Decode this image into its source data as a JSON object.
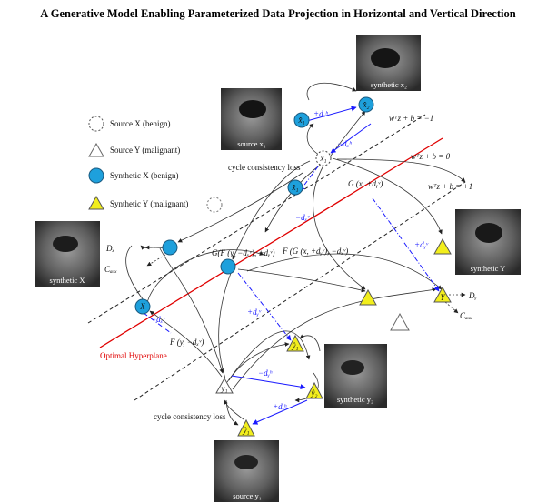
{
  "title": "A Generative Model Enabling Parameterized Data Projection in Horizontal and Vertical Direction",
  "legend": [
    {
      "label": "Source X (benign)"
    },
    {
      "label": "Source Y (malignant)"
    },
    {
      "label": "Synthetic X (benign)"
    },
    {
      "label": "Synthetic Y (malignant)"
    }
  ],
  "thumbnails": {
    "synthetic_x2": "synthetic x₂",
    "source_x1": "source x₁",
    "synthetic_x": "synthetic X",
    "synthetic_y": "synthetic Y",
    "synthetic_y2": "synthetic y₂",
    "source_y1": "source y₁"
  },
  "hyperplanes": {
    "lower": "wᵀz + b = −1",
    "middle": "wᵀz + b =  0",
    "upper": "wᵀz + b =  +1",
    "optimal": "Optimal Hyperplane"
  },
  "labels": {
    "cycle_top": "cycle consistency loss",
    "cycle_bottom": "cycle consistency loss",
    "g_x": "G (x, +dᵧᵛ)",
    "g_nested": "G(F (y, −dₓᵛ), +dᵧᵛ)",
    "f_nested": "F (G (x, +dᵧᵛ), −dₓᵛ)",
    "f_y": "F (y, −dₓᵛ)",
    "d_x": "Dₓ",
    "c_aux_left": "Cₐᵤₓ",
    "d_y": "Dᵧ",
    "c_aux_right": "Cₐᵤₓ"
  },
  "nodes": {
    "x1": "x₁",
    "x1_hat_top": "x̂₁",
    "x2_top": "x̂₂",
    "x1_hat_mid": "x̂₁",
    "X": "X",
    "y1": "y₁",
    "y1_hat_top": "ŷ₁",
    "y2": "ŷ₂",
    "y1_hat_bottom": "ŷ₁",
    "Y": "Y"
  },
  "deltas": {
    "plus_dxh": "+dₓʰ",
    "minus_dxh": "−dₓʰ",
    "minus_dxv_top": "−dₓᵛ",
    "plus_dyv_right": "+dᵧᵛ",
    "minus_dxv_left": "−dₓᵛ",
    "plus_dyv_mid": "+dᵧᵛ",
    "minus_dyh": "−dᵧʰ",
    "plus_dyh": "+dᵧʰ"
  },
  "colors": {
    "synthetic_x": "#1ea0dc",
    "synthetic_y": "#f2ee1c",
    "optimal": "#e00000",
    "delta": "#1a1aff"
  }
}
